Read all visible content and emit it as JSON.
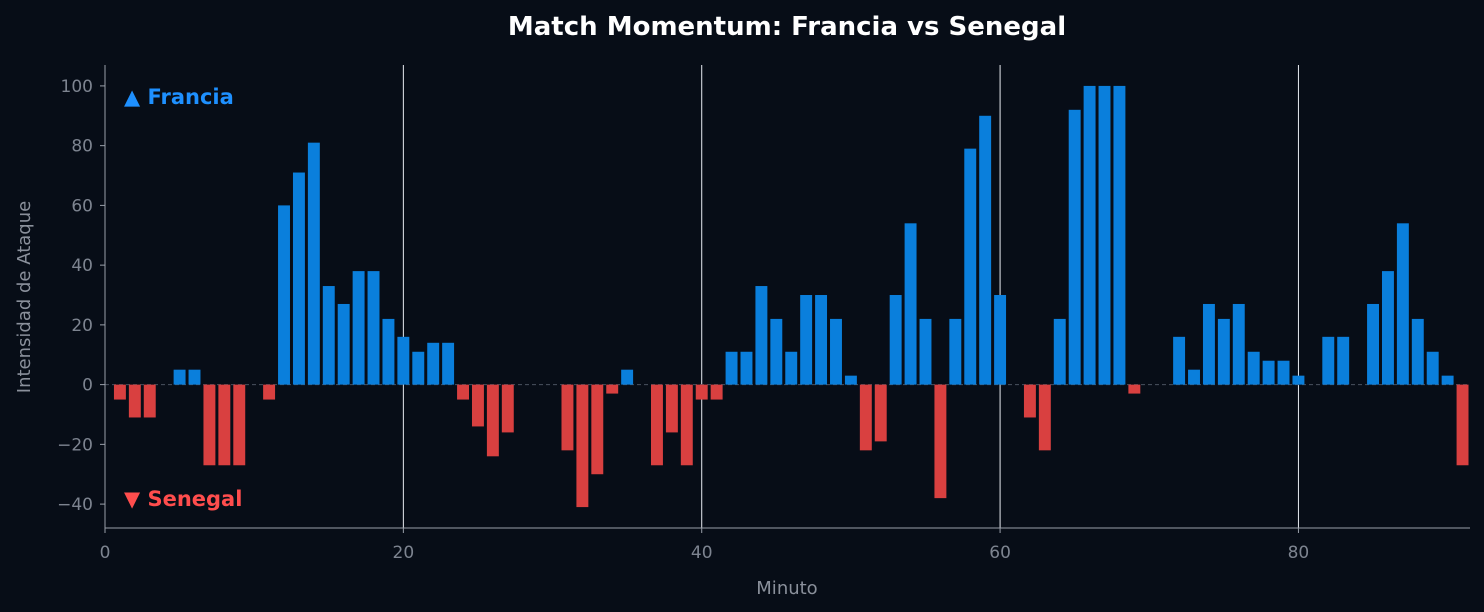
{
  "chart_data": {
    "type": "bar",
    "title": "Match Momentum: Francia vs Senegal",
    "xlabel": "Minuto",
    "ylabel": "Intensidad de Ataque",
    "xlim": [
      0,
      91.5
    ],
    "ylim": [
      -48,
      107
    ],
    "xticks": [
      0,
      20,
      40,
      60,
      80
    ],
    "yticks": [
      -40,
      -20,
      0,
      20,
      40,
      60,
      80,
      100
    ],
    "half_lines": [
      20,
      40,
      60,
      80
    ],
    "grid": false,
    "annotations": [
      {
        "text": "▲ Francia",
        "placement": "top-left"
      },
      {
        "text": "▼ Senegal",
        "placement": "bottom-left"
      }
    ],
    "colors": {
      "positive": "#0a7fdc",
      "negative": "#d94040",
      "francia_label": "#1e90ff",
      "senegal_label": "#ff4d4d"
    },
    "x": [
      1,
      2,
      3,
      4,
      5,
      6,
      7,
      8,
      9,
      10,
      11,
      12,
      13,
      14,
      15,
      16,
      17,
      18,
      19,
      20,
      21,
      22,
      23,
      24,
      25,
      26,
      27,
      28,
      29,
      30,
      31,
      32,
      33,
      34,
      35,
      36,
      37,
      38,
      39,
      40,
      41,
      42,
      43,
      44,
      45,
      46,
      47,
      48,
      49,
      50,
      51,
      52,
      53,
      54,
      55,
      56,
      57,
      58,
      59,
      60,
      61,
      62,
      63,
      64,
      65,
      66,
      67,
      68,
      69,
      70,
      71,
      72,
      73,
      74,
      75,
      76,
      77,
      78,
      79,
      80,
      81,
      82,
      83,
      84,
      85,
      86,
      87,
      88,
      89,
      90,
      91
    ],
    "values": [
      -5,
      -11,
      -11,
      0,
      5,
      5,
      -27,
      -27,
      -27,
      0,
      -5,
      60,
      71,
      81,
      33,
      27,
      38,
      38,
      22,
      16,
      11,
      14,
      14,
      -5,
      -14,
      -24,
      -16,
      0,
      0,
      0,
      -22,
      -41,
      -30,
      -3,
      5,
      0,
      -27,
      -16,
      -27,
      -5,
      -5,
      11,
      11,
      33,
      22,
      11,
      30,
      30,
      22,
      3,
      -22,
      -19,
      30,
      54,
      22,
      -38,
      22,
      79,
      90,
      30,
      0,
      -11,
      -22,
      22,
      92,
      100,
      100,
      100,
      -3,
      0,
      0,
      16,
      5,
      27,
      22,
      27,
      11,
      8,
      8,
      3,
      0,
      16,
      16,
      0,
      27,
      38,
      54,
      22,
      11,
      3,
      -27
    ]
  }
}
